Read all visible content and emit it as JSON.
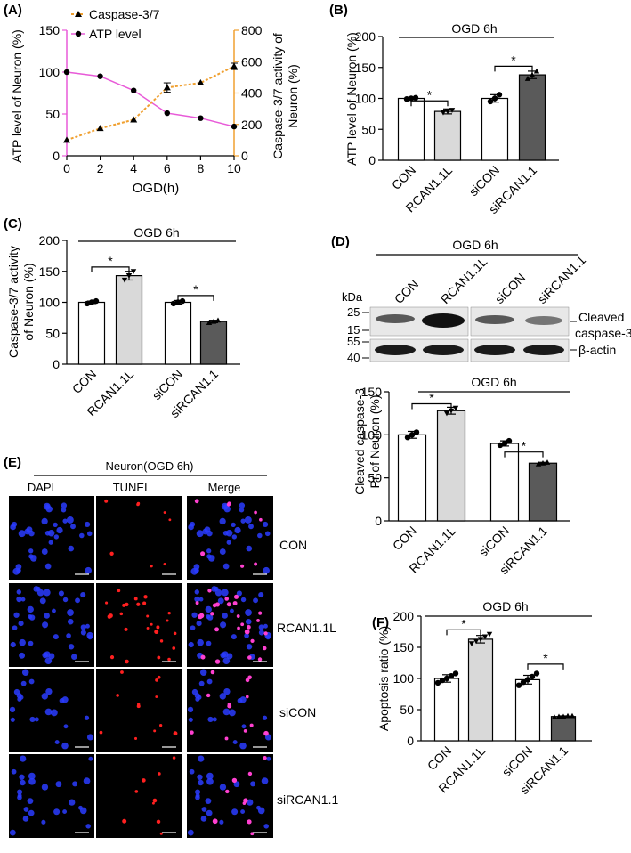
{
  "panels": {
    "A": {
      "letter": "(A)",
      "legend": [
        "Caspase-3/7",
        "ATP level"
      ],
      "ylabel_left": "ATP level of Neuron (%)",
      "ylabel_right": [
        "Caspase-3/7 activity of",
        "Neuron (%)"
      ],
      "xlabel": "OGD(h)",
      "colors": {
        "atp": "#e85ad8",
        "caspase": "#f0a030"
      }
    },
    "B": {
      "letter": "(B)",
      "header": "OGD 6h",
      "ylabel": "ATP level of Neuron (%)"
    },
    "C": {
      "letter": "(C)",
      "header": "OGD 6h",
      "ylabel": [
        "Caspase-3/7 activity",
        "of Neuron (%)"
      ]
    },
    "D": {
      "letter": "(D)",
      "blot_header": "OGD 6h",
      "lane_labels": [
        "CON",
        "RCAN1.1L",
        "siCON",
        "siRCAN1.1"
      ],
      "kda_label": "kDa",
      "markers": [
        "25",
        "15",
        "55",
        "40"
      ],
      "band_labels": [
        "Cleaved",
        "caspase-3",
        "β-actin"
      ],
      "chart_header": "OGD 6h",
      "ylabel": [
        "Cleaved caspase-3",
        "Pr of Neuron (%)"
      ]
    },
    "E": {
      "letter": "(E)",
      "header": "Neuron(OGD 6h)",
      "columns": [
        "DAPI",
        "TUNEL",
        "Merge"
      ],
      "rows": [
        "CON",
        "RCAN1.1L",
        "siCON",
        "siRCAN1.1"
      ]
    },
    "F": {
      "letter": "(F)",
      "header": "OGD 6h",
      "ylabel": "Apoptosis ratio (%)"
    }
  },
  "chart_data": [
    {
      "panel": "A",
      "type": "line",
      "x": [
        0,
        2,
        4,
        6,
        8,
        10
      ],
      "xlim": [
        0,
        10
      ],
      "xticks": [
        "0",
        "2",
        "4",
        "6",
        "8",
        "10"
      ],
      "xlabel": "OGD(h)",
      "series": [
        {
          "name": "ATP level",
          "axis": "left",
          "values": [
            100,
            95,
            78,
            51,
            45,
            35
          ]
        },
        {
          "name": "Caspase-3/7",
          "axis": "right",
          "values": [
            100,
            175,
            230,
            435,
            465,
            570
          ],
          "errors": [
            0,
            0,
            0,
            30,
            0,
            20
          ]
        }
      ],
      "ylim_left": [
        0,
        150
      ],
      "yticks_left": [
        "0",
        "50",
        "100",
        "150"
      ],
      "ylim_right": [
        0,
        800
      ],
      "yticks_right": [
        "0",
        "200",
        "400",
        "600",
        "800"
      ],
      "ylabel": "ATP level of Neuron (%)",
      "ylabel_right": "Caspase-3/7 activity of Neuron (%)",
      "legend": "top-left"
    },
    {
      "panel": "B",
      "type": "bar",
      "categories": [
        "CON",
        "RCAN1.1L",
        "siCON",
        "siRCAN1.1"
      ],
      "values": [
        100,
        79,
        100,
        138
      ],
      "errors": [
        1,
        4,
        6,
        6
      ],
      "points": [
        [
          99,
          100,
          101
        ],
        [
          77,
          79,
          81
        ],
        [
          95,
          100,
          106
        ],
        [
          132,
          138,
          144
        ]
      ],
      "ylim": [
        0,
        200
      ],
      "yticks": [
        "0",
        "50",
        "100",
        "150",
        "200"
      ],
      "ylabel": "ATP level of Neuron (%)",
      "significance": [
        "*",
        "*"
      ]
    },
    {
      "panel": "C",
      "type": "bar",
      "categories": [
        "CON",
        "RCAN1.1L",
        "siCON",
        "siRCAN1.1"
      ],
      "values": [
        100,
        143,
        100,
        69
      ],
      "errors": [
        2,
        7,
        3,
        2
      ],
      "points": [
        [
          98,
          100,
          102
        ],
        [
          136,
          143,
          150
        ],
        [
          98,
          100,
          102
        ],
        [
          67,
          69,
          71
        ]
      ],
      "ylim": [
        0,
        200
      ],
      "yticks": [
        "0",
        "50",
        "100",
        "150",
        "200"
      ],
      "ylabel": "Caspase-3/7 activity of Neuron (%)",
      "significance": [
        "*",
        "*"
      ]
    },
    {
      "panel": "D",
      "type": "bar",
      "categories": [
        "CON",
        "RCAN1.1L",
        "siCON",
        "siRCAN1.1"
      ],
      "values": [
        100,
        128,
        90,
        67
      ],
      "errors": [
        4,
        4,
        3,
        1
      ],
      "points": [
        [
          97,
          100,
          103
        ],
        [
          125,
          128,
          131
        ],
        [
          88,
          90,
          93
        ],
        [
          66,
          67,
          68
        ]
      ],
      "ylim": [
        0,
        150
      ],
      "yticks": [
        "0",
        "50",
        "100",
        "150"
      ],
      "ylabel": "Cleaved caspase-3 Pr of Neuron (%)",
      "significance": [
        "*",
        "*"
      ]
    },
    {
      "panel": "F",
      "type": "bar",
      "categories": [
        "CON",
        "RCAN1.1L",
        "siCON",
        "siRCAN1.1"
      ],
      "values": [
        100,
        163,
        98,
        39
      ],
      "errors": [
        6,
        6,
        7,
        1
      ],
      "points": [
        [
          93,
          97,
          100,
          104,
          108
        ],
        [
          156,
          160,
          163,
          167,
          171
        ],
        [
          89,
          94,
          98,
          103,
          108
        ],
        [
          38,
          39,
          39,
          40,
          40
        ]
      ],
      "ylim": [
        0,
        200
      ],
      "yticks": [
        "0",
        "50",
        "100",
        "150",
        "200"
      ],
      "ylabel": "Apoptosis ratio (%)",
      "significance": [
        "*",
        "*"
      ]
    }
  ]
}
